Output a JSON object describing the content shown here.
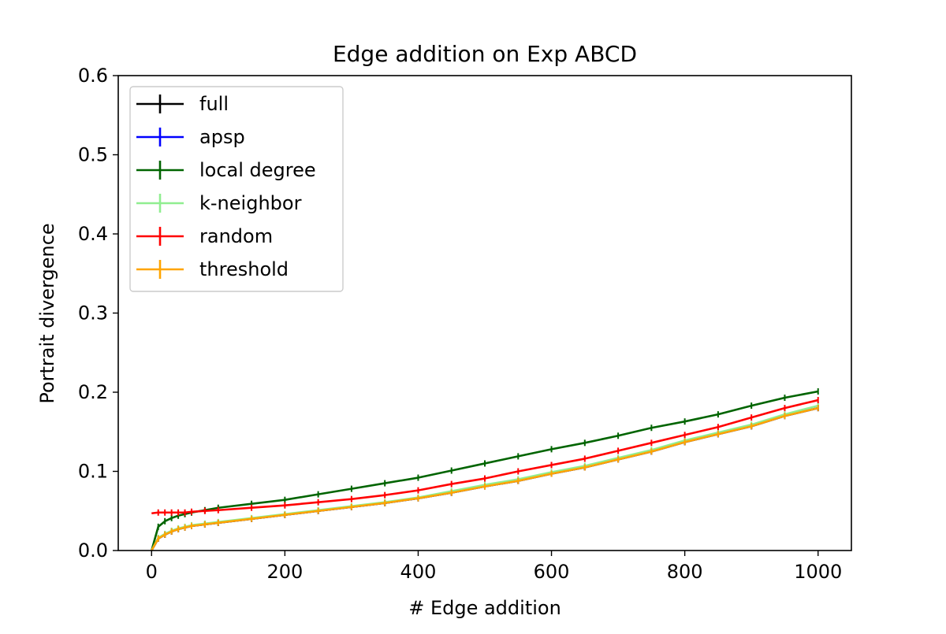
{
  "chart_data": {
    "type": "line",
    "title": "Edge addition on Exp ABCD",
    "xlabel": "# Edge addition",
    "ylabel": "Portrait divergence",
    "xlim": [
      -50,
      1050
    ],
    "ylim": [
      0.0,
      0.6
    ],
    "xticks": [
      0,
      200,
      400,
      600,
      800,
      1000
    ],
    "xtick_labels": [
      "0",
      "200",
      "400",
      "600",
      "800",
      "1000"
    ],
    "yticks": [
      0.0,
      0.1,
      0.2,
      0.3,
      0.4,
      0.5,
      0.6
    ],
    "ytick_labels": [
      "0.0",
      "0.1",
      "0.2",
      "0.3",
      "0.4",
      "0.5",
      "0.6"
    ],
    "grid": false,
    "legend_position": "upper left",
    "x": [
      0,
      10,
      20,
      30,
      40,
      50,
      60,
      80,
      100,
      150,
      200,
      250,
      300,
      350,
      400,
      450,
      500,
      550,
      600,
      650,
      700,
      750,
      800,
      850,
      900,
      950,
      1000
    ],
    "series": [
      {
        "name": "full",
        "color": "#000000",
        "values": [
          0.0,
          0.015,
          0.02,
          0.024,
          0.027,
          0.029,
          0.031,
          0.033,
          0.035,
          0.04,
          0.045,
          0.05,
          0.055,
          0.06,
          0.066,
          0.073,
          0.081,
          0.088,
          0.097,
          0.105,
          0.115,
          0.125,
          0.137,
          0.147,
          0.157,
          0.17,
          0.18
        ]
      },
      {
        "name": "apsp",
        "color": "#0000ff",
        "values": [
          0.0,
          0.015,
          0.02,
          0.024,
          0.027,
          0.029,
          0.031,
          0.033,
          0.035,
          0.04,
          0.045,
          0.05,
          0.055,
          0.06,
          0.066,
          0.073,
          0.081,
          0.088,
          0.097,
          0.105,
          0.115,
          0.125,
          0.137,
          0.147,
          0.157,
          0.17,
          0.18
        ]
      },
      {
        "name": "local degree",
        "color": "#006400",
        "values": [
          0.0,
          0.03,
          0.037,
          0.041,
          0.044,
          0.046,
          0.048,
          0.051,
          0.054,
          0.059,
          0.064,
          0.071,
          0.078,
          0.085,
          0.092,
          0.101,
          0.11,
          0.119,
          0.128,
          0.136,
          0.145,
          0.155,
          0.163,
          0.172,
          0.183,
          0.193,
          0.201
        ]
      },
      {
        "name": "k-neighbor",
        "color": "#90ee90",
        "values": [
          0.0,
          0.016,
          0.021,
          0.025,
          0.028,
          0.03,
          0.032,
          0.034,
          0.036,
          0.041,
          0.046,
          0.051,
          0.056,
          0.061,
          0.067,
          0.075,
          0.083,
          0.09,
          0.099,
          0.107,
          0.117,
          0.127,
          0.139,
          0.149,
          0.159,
          0.172,
          0.183
        ]
      },
      {
        "name": "random",
        "color": "#ff0000",
        "values": [
          0.047,
          0.048,
          0.048,
          0.048,
          0.048,
          0.048,
          0.049,
          0.05,
          0.051,
          0.054,
          0.057,
          0.061,
          0.065,
          0.07,
          0.076,
          0.084,
          0.091,
          0.1,
          0.108,
          0.116,
          0.126,
          0.136,
          0.146,
          0.156,
          0.168,
          0.18,
          0.19
        ]
      },
      {
        "name": "threshold",
        "color": "#ffa500",
        "values": [
          0.0,
          0.015,
          0.02,
          0.024,
          0.027,
          0.029,
          0.031,
          0.033,
          0.035,
          0.04,
          0.045,
          0.05,
          0.055,
          0.06,
          0.066,
          0.073,
          0.081,
          0.088,
          0.097,
          0.105,
          0.115,
          0.125,
          0.137,
          0.147,
          0.157,
          0.17,
          0.18
        ]
      }
    ]
  }
}
